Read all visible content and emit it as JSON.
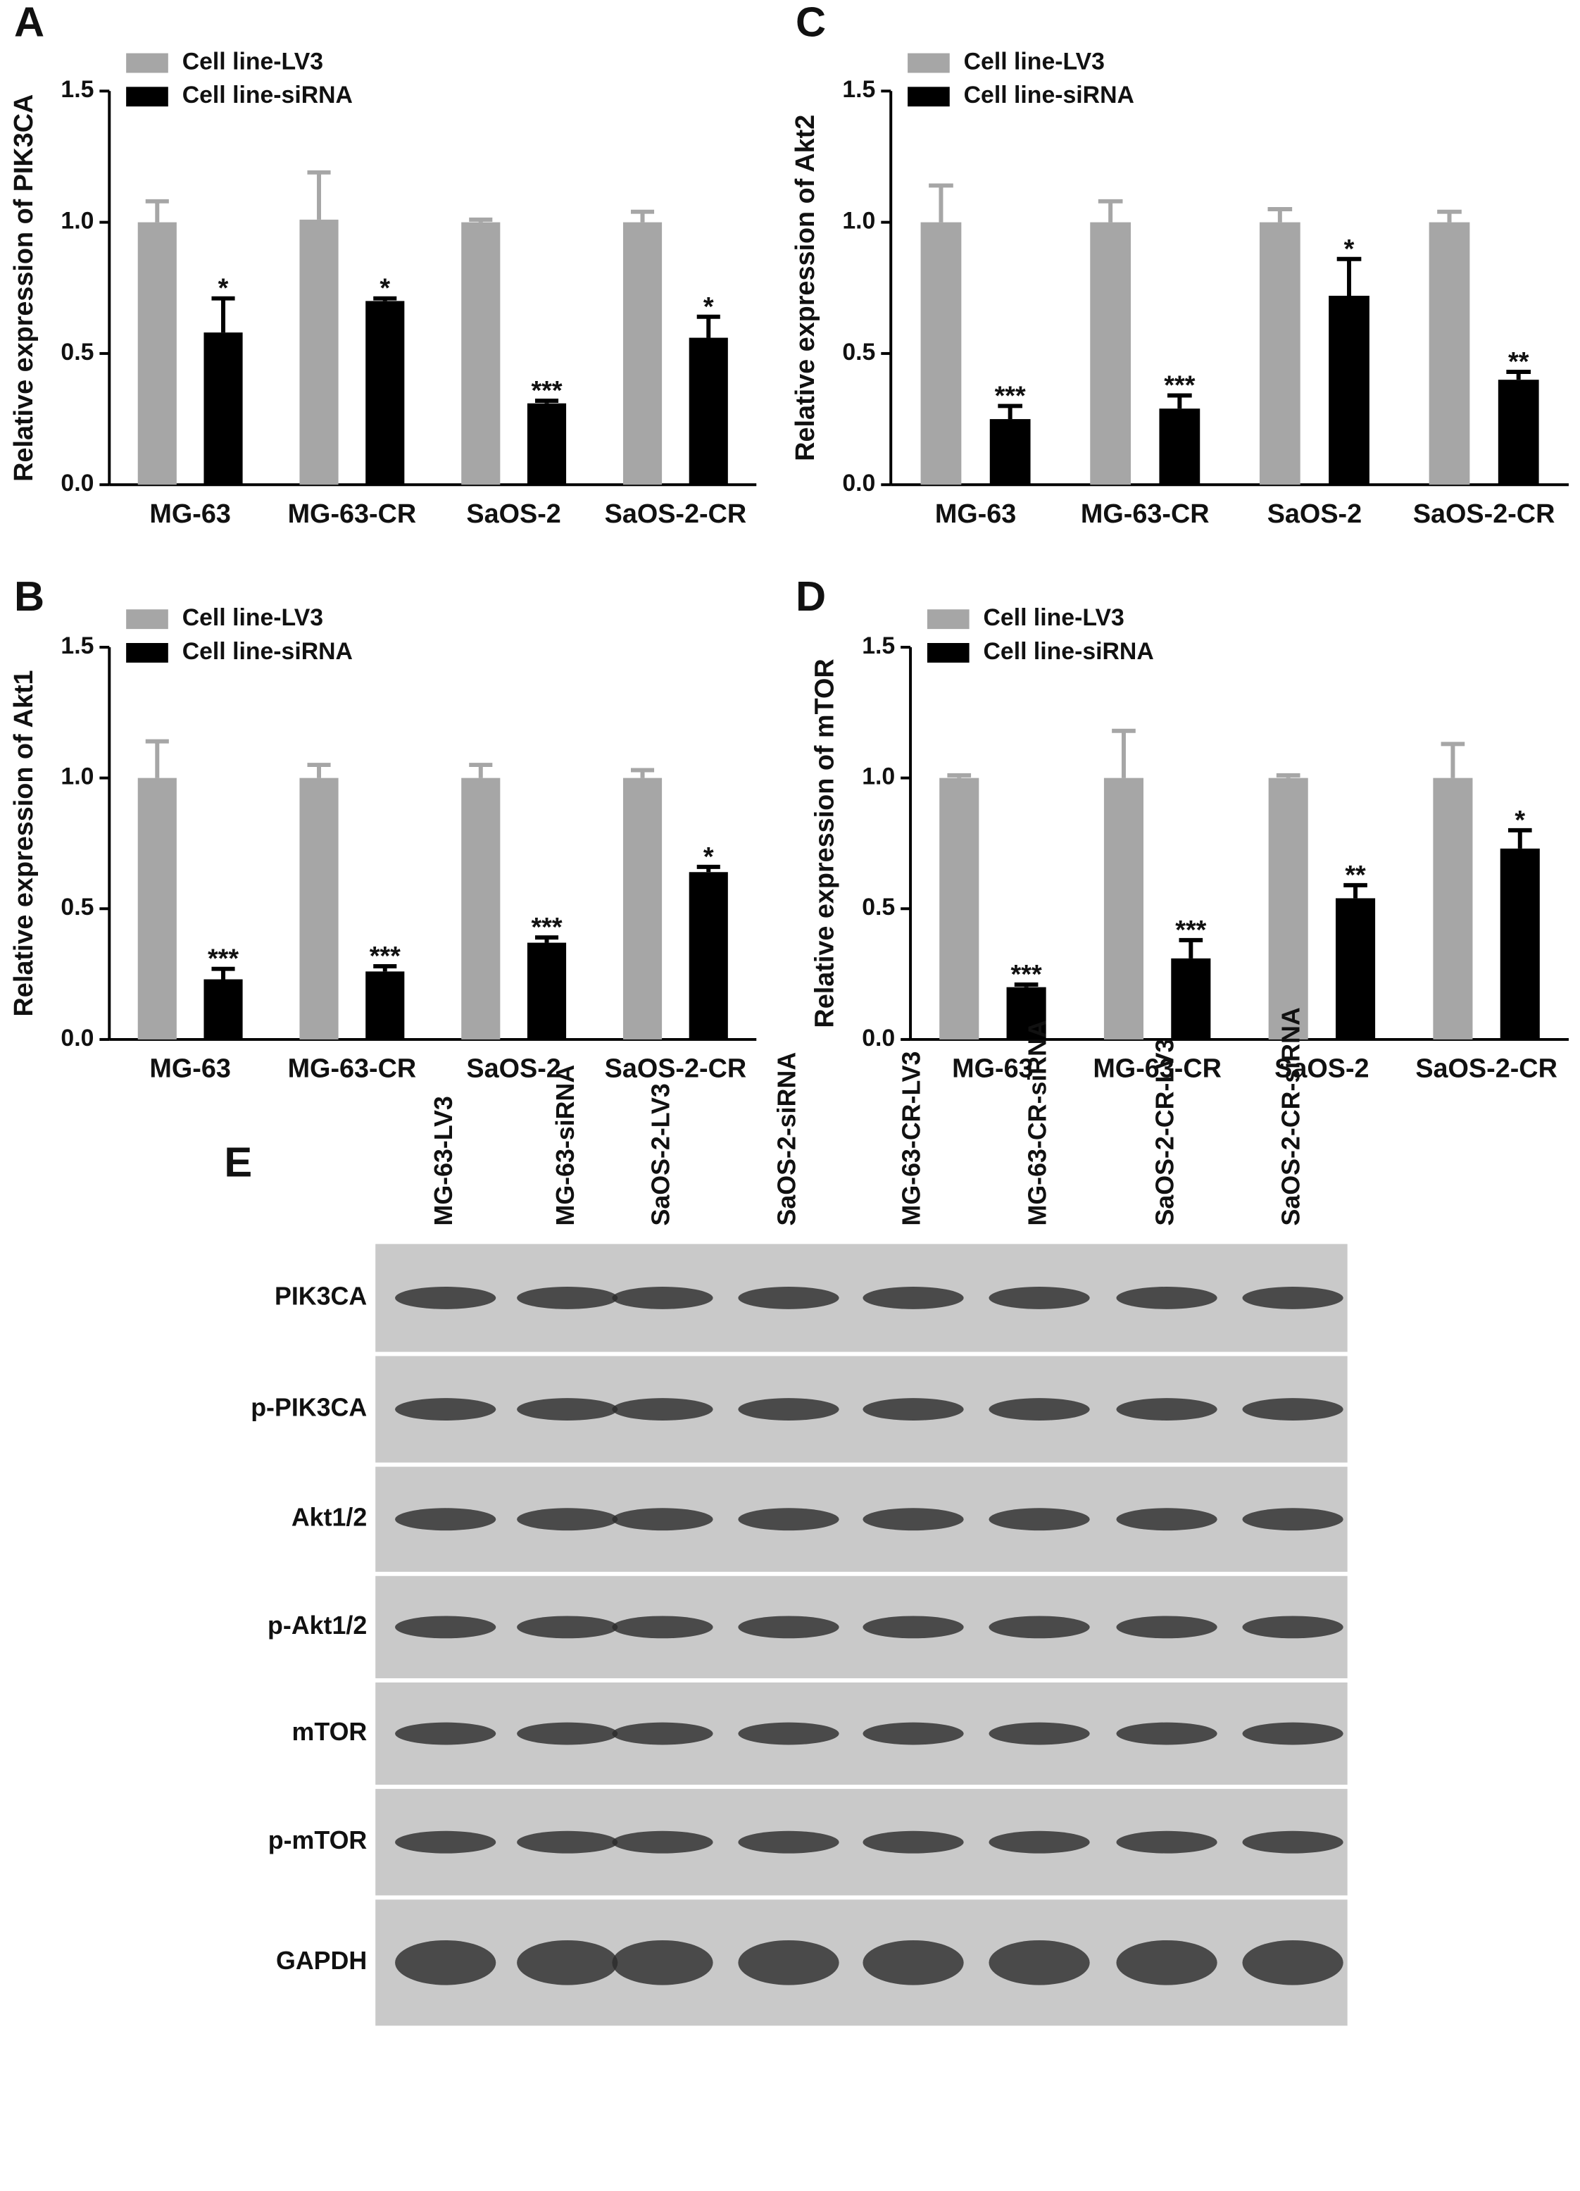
{
  "chart_data": [
    {
      "type": "bar",
      "panel": "A",
      "y_label": "Relative expression of PIK3CA",
      "categories": [
        "MG-63",
        "MG-63-CR",
        "SaOS-2",
        "SaOS-2-CR"
      ],
      "series": [
        {
          "name": "Cell line-LV3",
          "color": "#a6a6a6",
          "values": [
            1.0,
            1.01,
            1.0,
            1.0
          ],
          "errors": [
            0.08,
            0.18,
            0.01,
            0.04
          ]
        },
        {
          "name": "Cell line-siRNA",
          "color": "#000000",
          "values": [
            0.58,
            0.7,
            0.31,
            0.56
          ],
          "errors": [
            0.13,
            0.01,
            0.01,
            0.08
          ],
          "annotations": [
            "*",
            "*",
            "***",
            "*"
          ]
        }
      ],
      "ylim": [
        0,
        1.5
      ],
      "yticks": [
        {
          "value": 0,
          "label": "0.0"
        },
        0.5,
        {
          "value": 1,
          "label": "1.0"
        },
        1.5
      ]
    },
    {
      "type": "bar",
      "panel": "C",
      "y_label": "Relative expression of Akt2",
      "categories": [
        "MG-63",
        "MG-63-CR",
        "SaOS-2",
        "SaOS-2-CR"
      ],
      "series": [
        {
          "name": "Cell line-LV3",
          "color": "#a6a6a6",
          "values": [
            1.0,
            1.0,
            1.0,
            1.0
          ],
          "errors": [
            0.14,
            0.08,
            0.05,
            0.04
          ]
        },
        {
          "name": "Cell line-siRNA",
          "color": "#000000",
          "values": [
            0.25,
            0.29,
            0.72,
            0.4
          ],
          "errors": [
            0.05,
            0.05,
            0.14,
            0.03
          ],
          "annotations": [
            "***",
            "***",
            "*",
            "**"
          ]
        }
      ],
      "ylim": [
        0,
        1.5
      ],
      "yticks": [
        {
          "value": 0,
          "label": "0.0"
        },
        0.5,
        {
          "value": 1,
          "label": "1.0"
        },
        1.5
      ]
    },
    {
      "type": "bar",
      "panel": "B",
      "y_label": "Relative expression of Akt1",
      "categories": [
        "MG-63",
        "MG-63-CR",
        "SaOS-2",
        "SaOS-2-CR"
      ],
      "series": [
        {
          "name": "Cell line-LV3",
          "color": "#a6a6a6",
          "values": [
            1.0,
            1.0,
            1.0,
            1.0
          ],
          "errors": [
            0.14,
            0.05,
            0.05,
            0.03
          ]
        },
        {
          "name": "Cell line-siRNA",
          "color": "#000000",
          "values": [
            0.23,
            0.26,
            0.37,
            0.64
          ],
          "errors": [
            0.04,
            0.02,
            0.02,
            0.02
          ],
          "annotations": [
            "***",
            "***",
            "***",
            "*"
          ]
        }
      ],
      "ylim": [
        0,
        1.5
      ],
      "yticks": [
        {
          "value": 0,
          "label": "0.0"
        },
        0.5,
        {
          "value": 1,
          "label": "1.0"
        },
        1.5
      ]
    },
    {
      "type": "bar",
      "panel": "D",
      "y_label": "Relative expression of mTOR",
      "categories": [
        "MG-63",
        "MG-63-CR",
        "SaOS-2",
        "SaOS-2-CR"
      ],
      "series": [
        {
          "name": "Cell line-LV3",
          "color": "#a6a6a6",
          "values": [
            1.0,
            1.0,
            1.0,
            1.0
          ],
          "errors": [
            0.01,
            0.18,
            0.01,
            0.13
          ]
        },
        {
          "name": "Cell line-siRNA",
          "color": "#000000",
          "values": [
            0.2,
            0.31,
            0.54,
            0.73
          ],
          "errors": [
            0.01,
            0.07,
            0.05,
            0.07
          ],
          "annotations": [
            "***",
            "***",
            "**",
            "*"
          ]
        }
      ],
      "ylim": [
        0,
        1.5
      ],
      "yticks": [
        {
          "value": 0,
          "label": "0.0"
        },
        0.5,
        {
          "value": 1,
          "label": "1.0"
        },
        1.5
      ]
    }
  ],
  "blot": {
    "panel": "E",
    "lanes": [
      "MG-63-LV3",
      "MG-63-siRNA",
      "SaOS-2-LV3",
      "SaOS-2-siRNA",
      "MG-63-CR-LV3",
      "MG-63-CR-siRNA",
      "SaOS-2-CR-LV3",
      "SaOS-2-CR-siRNA"
    ],
    "rows": [
      "PIK3CA",
      "p-PIK3CA",
      "Akt1/2",
      "p-Akt1/2",
      "mTOR",
      "p-mTOR",
      "GAPDH"
    ]
  }
}
